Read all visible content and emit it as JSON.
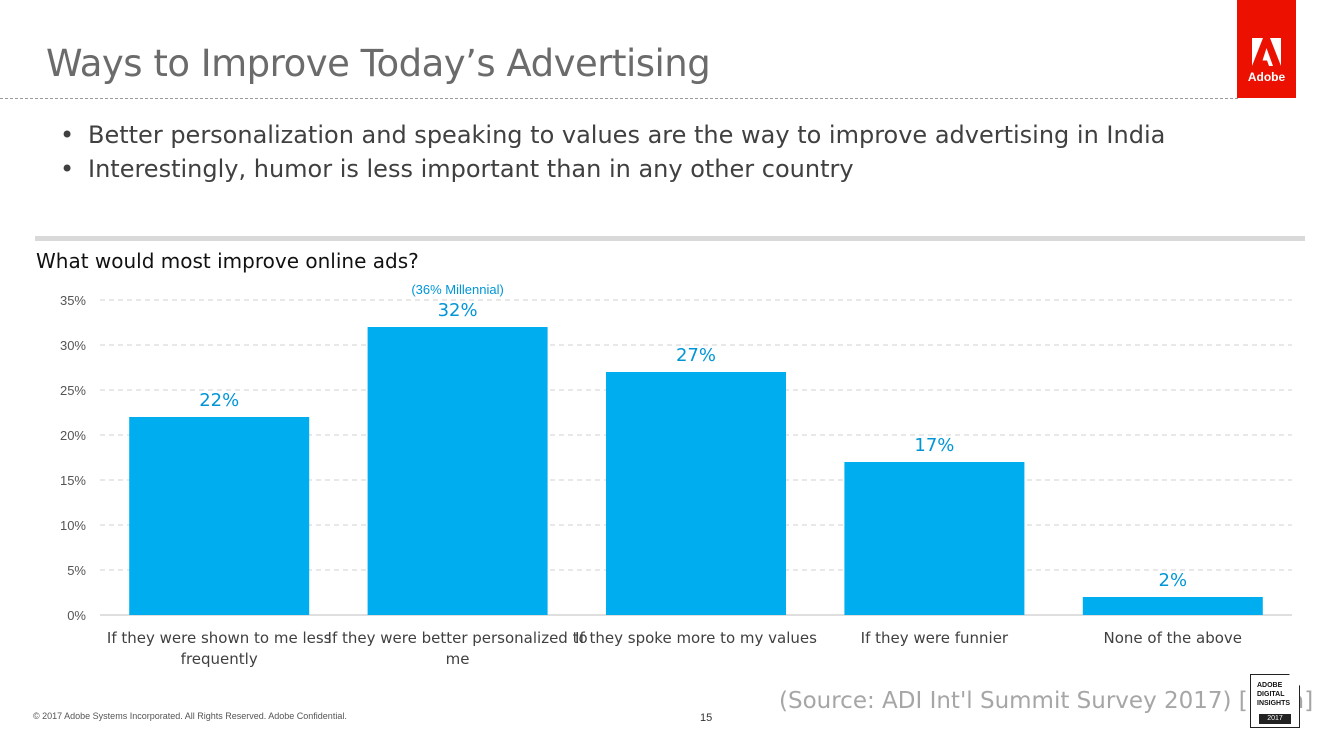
{
  "slide": {
    "title": "Ways to Improve Today’s Advertising",
    "bullets": [
      "Better personalization and speaking to values are the way to improve advertising in India",
      "Interestingly, humor is less important than in any other country"
    ],
    "chart_heading": "What would most improve online ads?",
    "logo_text": "Adobe",
    "footer_copyright": "© 2017 Adobe Systems Incorporated.  All Rights Reserved.  Adobe Confidential.",
    "page_number": "15",
    "source": "(Source: ADI Int'l Summit Survey 2017) [India]",
    "badge": {
      "line1": "ADOBE",
      "line2": "DIGITAL",
      "line3": "INSIGHTS",
      "year": "2017"
    }
  },
  "colors": {
    "bar": "#00adef",
    "label": "#0096d6",
    "brand": "#eb1000"
  },
  "chart_data": {
    "type": "bar",
    "categories": [
      [
        "If they were shown to me less",
        "frequently"
      ],
      [
        "If they were better personalized to",
        "me"
      ],
      [
        "If they spoke more to my values"
      ],
      [
        "If they were funnier"
      ],
      [
        "None of the above"
      ]
    ],
    "values": [
      22,
      32,
      27,
      17,
      2
    ],
    "data_labels": [
      "22%",
      "32%",
      "27%",
      "17%",
      "2%"
    ],
    "annotation": {
      "category_index": 1,
      "text": "(36% Millennial)"
    },
    "ylim": [
      0,
      35
    ],
    "yticks": [
      0,
      5,
      10,
      15,
      20,
      25,
      30,
      35
    ],
    "ytick_labels": [
      "0%",
      "5%",
      "10%",
      "15%",
      "20%",
      "25%",
      "30%",
      "35%"
    ],
    "grid": true,
    "title": "",
    "xlabel": "",
    "ylabel": ""
  }
}
